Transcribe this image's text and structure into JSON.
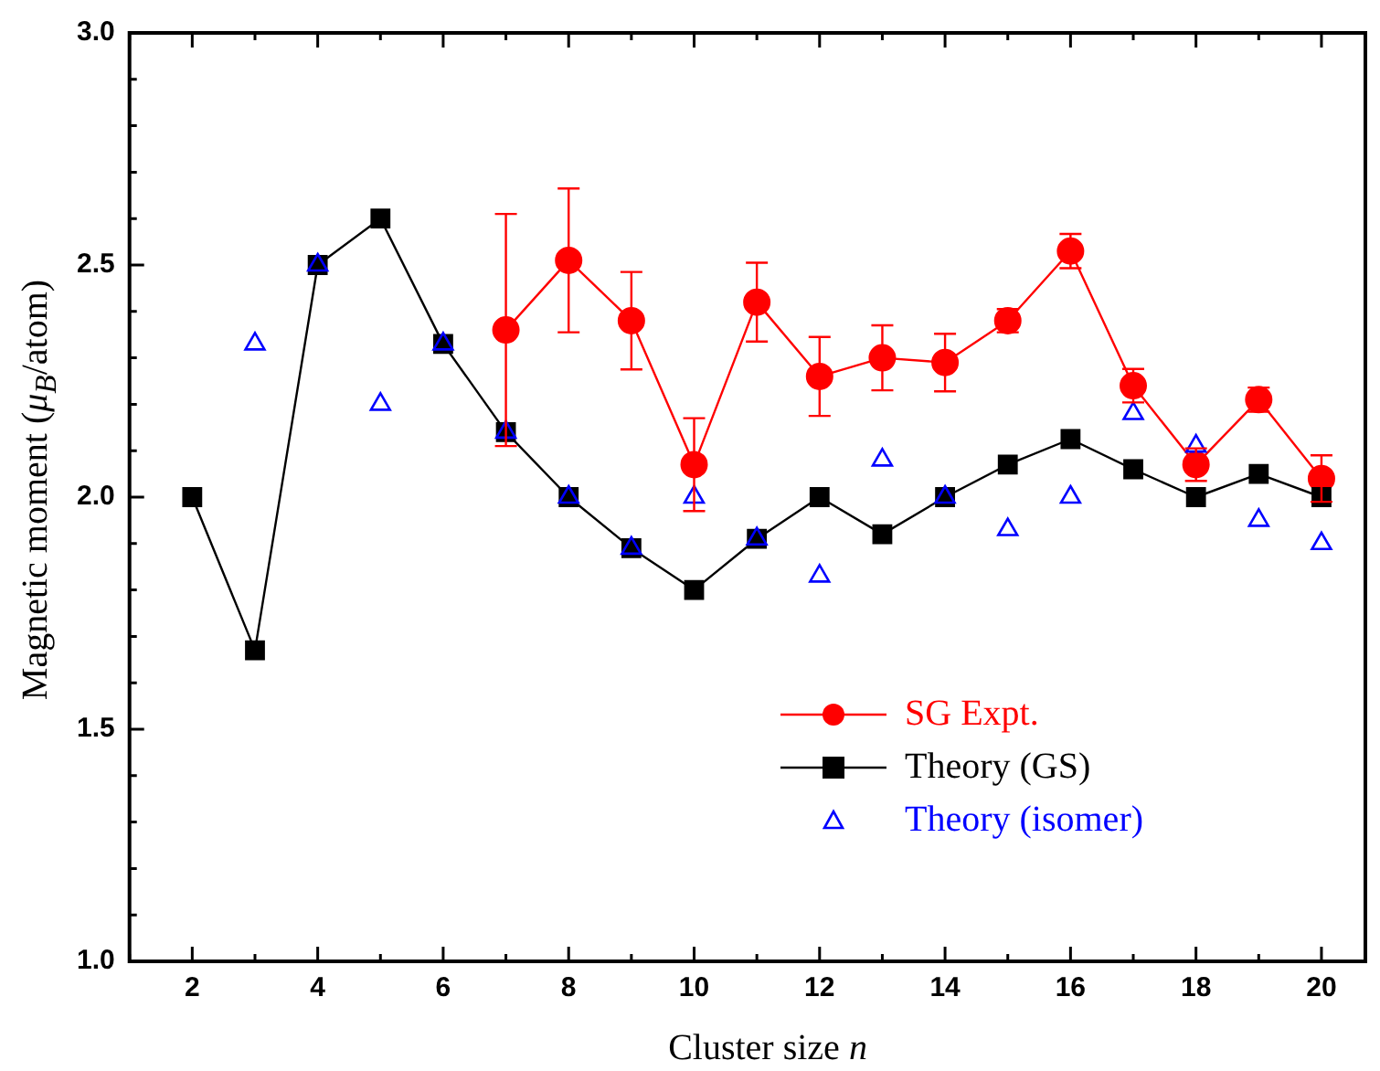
{
  "chart_data": {
    "type": "line",
    "xlabel": "Cluster size n",
    "ylabel": "Magnetic moment (μ$_{B}$/atom)",
    "xlim": [
      1,
      20.7
    ],
    "ylim": [
      1.0,
      3.0
    ],
    "xticks": [
      {
        "value": 1,
        "label": null
      },
      2,
      {
        "value": 3,
        "label": null
      },
      4,
      {
        "value": 5,
        "label": null
      },
      6,
      {
        "value": 7,
        "label": null
      },
      8,
      {
        "value": 9,
        "label": null
      },
      10,
      {
        "value": 11,
        "label": null
      },
      12,
      {
        "value": 13,
        "label": null
      },
      14,
      {
        "value": 15,
        "label": null
      },
      16,
      {
        "value": 17,
        "label": null
      },
      18,
      {
        "value": 19,
        "label": null
      },
      20
    ],
    "yticks": [
      {
        "value": 1.0,
        "label": "1.0"
      },
      {
        "value": 1.1,
        "label": null
      },
      {
        "value": 1.2,
        "label": null
      },
      {
        "value": 1.3,
        "label": null
      },
      {
        "value": 1.4,
        "label": null
      },
      1.5,
      {
        "value": 1.6,
        "label": null
      },
      {
        "value": 1.7,
        "label": null
      },
      {
        "value": 1.8,
        "label": null
      },
      {
        "value": 1.9,
        "label": null
      },
      {
        "value": 2.0,
        "label": "2.0"
      },
      {
        "value": 2.1,
        "label": null
      },
      {
        "value": 2.2,
        "label": null
      },
      {
        "value": 2.3,
        "label": null
      },
      {
        "value": 2.4,
        "label": null
      },
      2.5,
      {
        "value": 2.6,
        "label": null
      },
      {
        "value": 2.7,
        "label": null
      },
      {
        "value": 2.8,
        "label": null
      },
      {
        "value": 2.9,
        "label": null
      },
      {
        "value": 3.0,
        "label": "3.0"
      }
    ],
    "grid": false,
    "legend": "bottom right",
    "series": [
      {
        "name": "SG Expt.",
        "type": "line",
        "marker": "circle",
        "color": "#ff0000",
        "x": [
          7,
          8,
          9,
          10,
          11,
          12,
          13,
          14,
          15,
          16,
          17,
          18,
          19,
          20
        ],
        "values": [
          2.36,
          2.51,
          2.38,
          2.07,
          2.42,
          2.26,
          2.3,
          2.29,
          2.38,
          2.53,
          2.24,
          2.07,
          2.21,
          2.04
        ],
        "errors": [
          0.25,
          0.155,
          0.105,
          0.1,
          0.085,
          0.085,
          0.07,
          0.062,
          0.025,
          0.037,
          0.036,
          0.035,
          0.026,
          0.05
        ]
      },
      {
        "name": "Theory (GS)",
        "type": "line",
        "marker": "square",
        "color": "#000000",
        "x": [
          2,
          3,
          4,
          5,
          6,
          7,
          8,
          9,
          10,
          11,
          12,
          13,
          14,
          15,
          16,
          17,
          18,
          19,
          20
        ],
        "values": [
          2.0,
          1.67,
          2.5,
          2.6,
          2.33,
          2.14,
          2.0,
          1.89,
          1.8,
          1.91,
          2.0,
          1.92,
          2.0,
          2.07,
          2.125,
          2.06,
          2.0,
          2.05,
          2.0
        ]
      },
      {
        "name": "Theory (isomer)",
        "type": "scatter",
        "marker": "triangle",
        "color": "#0000ff",
        "x": [
          3,
          4,
          5,
          6,
          7,
          8,
          9,
          10,
          11,
          12,
          13,
          14,
          15,
          16,
          17,
          18,
          19,
          20
        ],
        "values": [
          2.33,
          2.5,
          2.2,
          2.33,
          2.14,
          2.0,
          1.89,
          2.0,
          1.91,
          1.83,
          2.08,
          2.0,
          1.93,
          2.0,
          2.18,
          2.11,
          1.95,
          1.9
        ]
      }
    ]
  }
}
